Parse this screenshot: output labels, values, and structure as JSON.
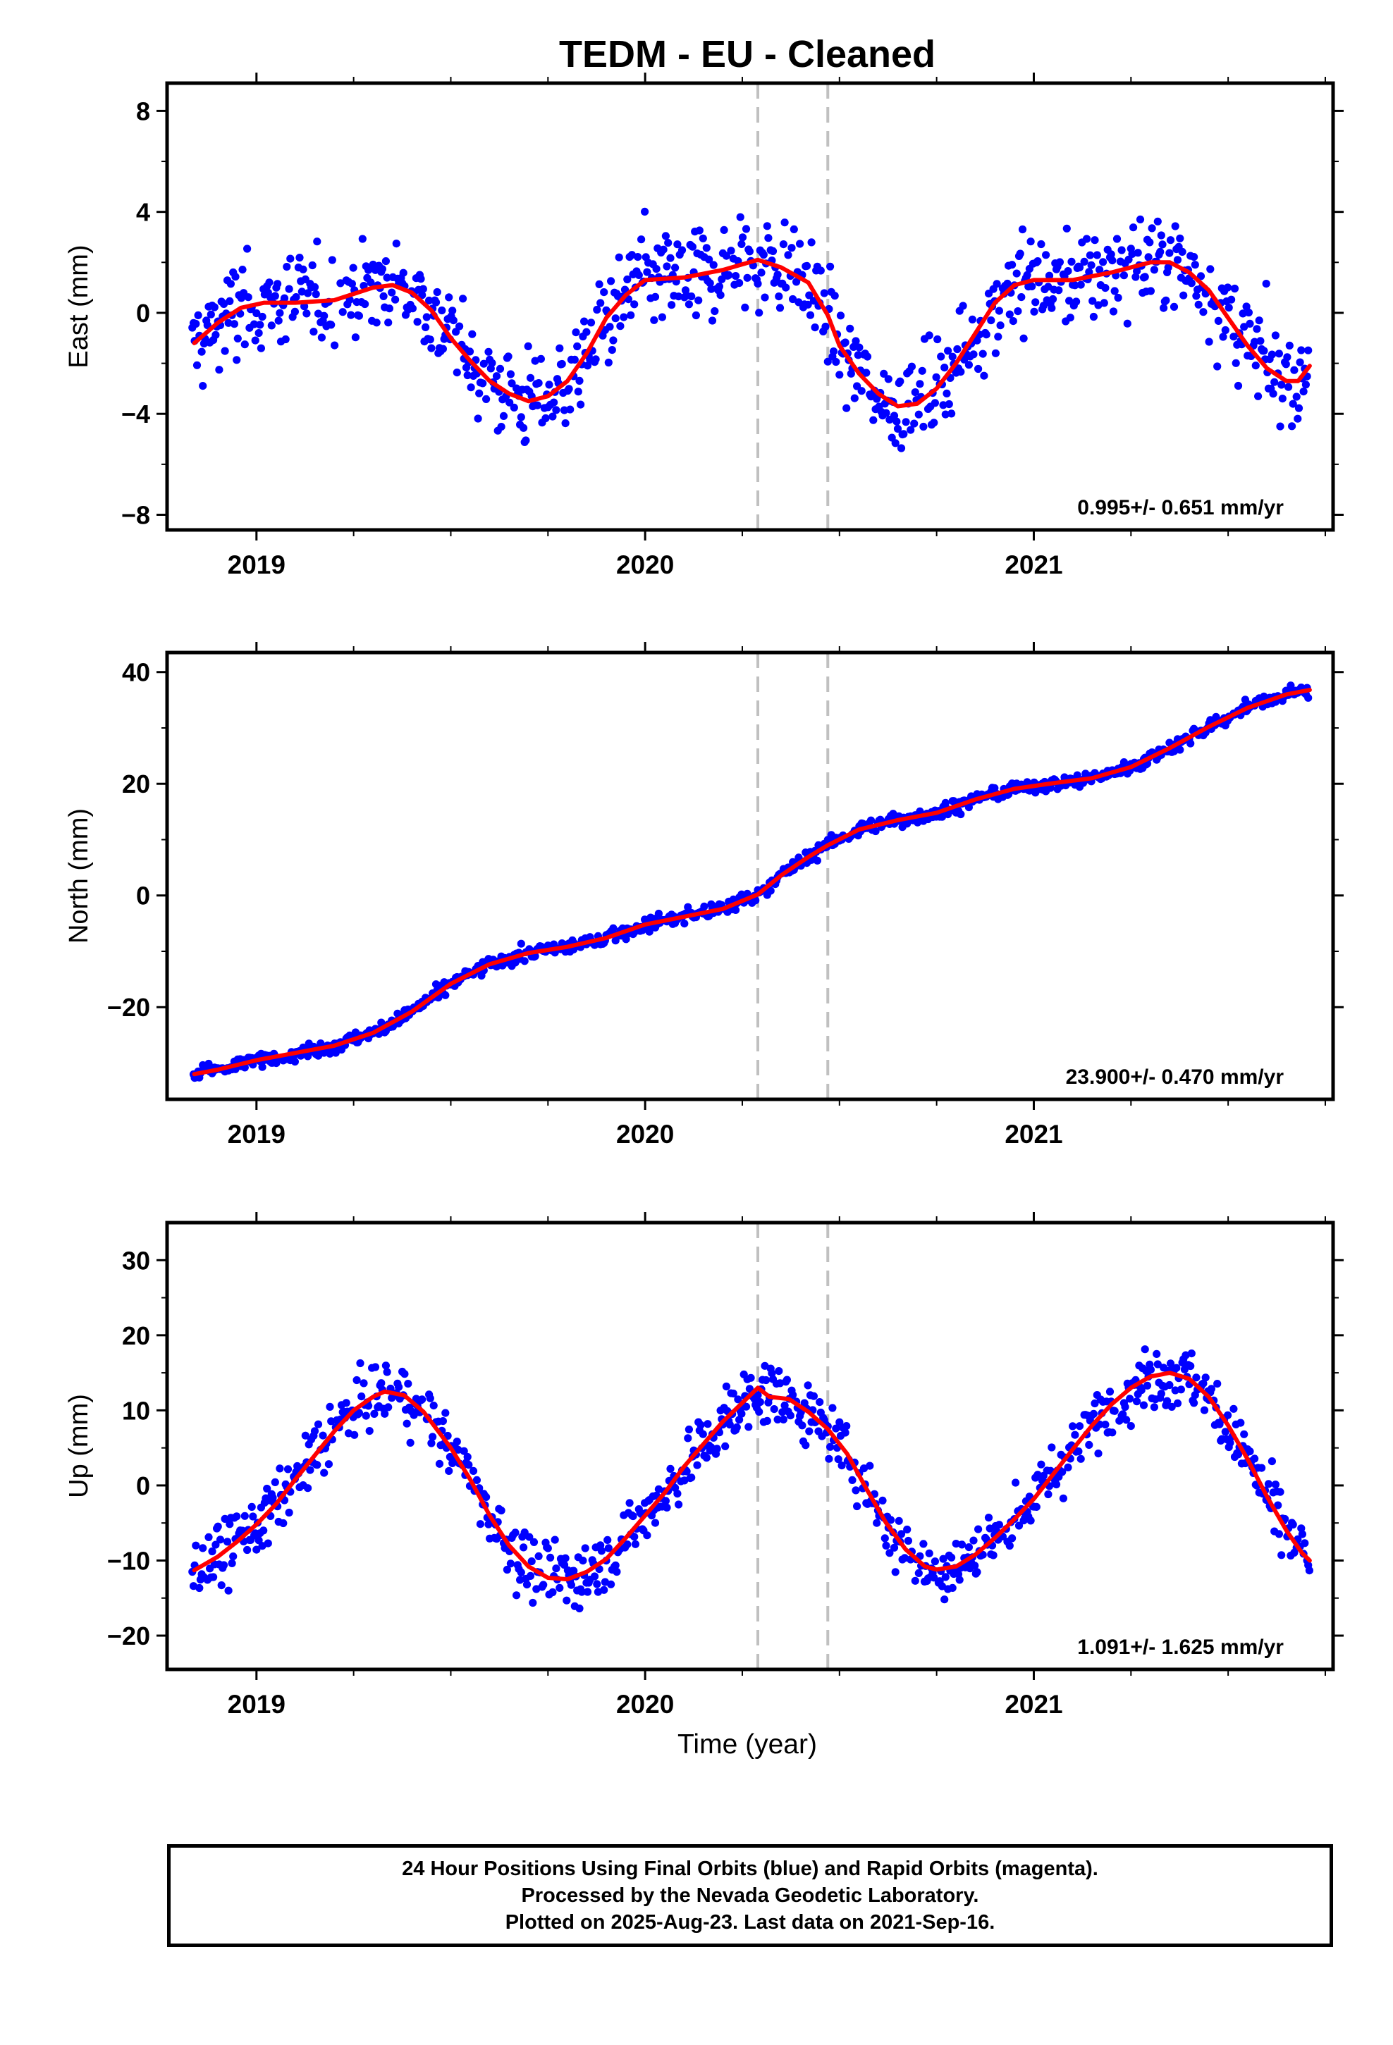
{
  "title": "TEDM  - EU - Cleaned",
  "xlabel": "Time (year)",
  "colors": {
    "points": "#0000ff",
    "fit": "#ff0000",
    "event_lines": "#c0c0c0"
  },
  "footer": {
    "line1": "24 Hour Positions Using Final Orbits (blue) and Rapid Orbits (magenta).",
    "line2": "Processed by the Nevada Geodetic Laboratory.",
    "line3": "Plotted on 2025-Aug-23. Last data on 2021-Sep-16."
  },
  "chart_data": [
    {
      "type": "scatter",
      "component": "east",
      "ylabel": "East (mm)",
      "rate_label": "0.995+/- 0.651 mm/yr",
      "xlim": [
        2018.77,
        2021.77
      ],
      "ylim": [
        -8.6,
        9.1
      ],
      "yticks": [
        -8,
        -4,
        0,
        4,
        8
      ],
      "xticks": [
        2019,
        2020,
        2021
      ],
      "event_lines": [
        2020.29,
        2020.47
      ],
      "fit": [
        [
          2018.84,
          -1.2
        ],
        [
          2018.9,
          -0.4
        ],
        [
          2018.96,
          0.2
        ],
        [
          2019.02,
          0.4
        ],
        [
          2019.1,
          0.4
        ],
        [
          2019.2,
          0.5
        ],
        [
          2019.3,
          1.0
        ],
        [
          2019.35,
          1.1
        ],
        [
          2019.4,
          0.8
        ],
        [
          2019.45,
          0.1
        ],
        [
          2019.5,
          -1.0
        ],
        [
          2019.55,
          -1.9
        ],
        [
          2019.6,
          -2.7
        ],
        [
          2019.65,
          -3.2
        ],
        [
          2019.7,
          -3.5
        ],
        [
          2019.75,
          -3.3
        ],
        [
          2019.8,
          -2.7
        ],
        [
          2019.85,
          -1.6
        ],
        [
          2019.9,
          -0.2
        ],
        [
          2019.95,
          0.7
        ],
        [
          2020.0,
          1.3
        ],
        [
          2020.1,
          1.4
        ],
        [
          2020.2,
          1.7
        ],
        [
          2020.29,
          2.1
        ],
        [
          2020.35,
          1.8
        ],
        [
          2020.42,
          1.2
        ],
        [
          2020.47,
          -0.1
        ],
        [
          2020.5,
          -1.3
        ],
        [
          2020.55,
          -2.4
        ],
        [
          2020.6,
          -3.2
        ],
        [
          2020.65,
          -3.7
        ],
        [
          2020.7,
          -3.6
        ],
        [
          2020.75,
          -3.0
        ],
        [
          2020.8,
          -2.0
        ],
        [
          2020.85,
          -0.8
        ],
        [
          2020.9,
          0.4
        ],
        [
          2020.95,
          1.1
        ],
        [
          2021.0,
          1.3
        ],
        [
          2021.1,
          1.3
        ],
        [
          2021.2,
          1.6
        ],
        [
          2021.3,
          2.0
        ],
        [
          2021.35,
          2.0
        ],
        [
          2021.4,
          1.6
        ],
        [
          2021.45,
          0.9
        ],
        [
          2021.5,
          -0.2
        ],
        [
          2021.55,
          -1.3
        ],
        [
          2021.6,
          -2.2
        ],
        [
          2021.65,
          -2.7
        ],
        [
          2021.68,
          -2.7
        ],
        [
          2021.71,
          -2.1
        ]
      ]
    },
    {
      "type": "scatter",
      "component": "north",
      "ylabel": "North (mm)",
      "rate_label": "23.900+/- 0.470 mm/yr",
      "xlim": [
        2018.77,
        2021.77
      ],
      "ylim": [
        -36.5,
        43.5
      ],
      "yticks": [
        -20,
        0,
        20,
        40
      ],
      "xticks": [
        2019,
        2020,
        2021
      ],
      "event_lines": [
        2020.29,
        2020.47
      ],
      "fit": [
        [
          2018.84,
          -32.0
        ],
        [
          2018.9,
          -31.2
        ],
        [
          2019.0,
          -29.5
        ],
        [
          2019.1,
          -28.2
        ],
        [
          2019.2,
          -26.9
        ],
        [
          2019.3,
          -24.6
        ],
        [
          2019.4,
          -20.8
        ],
        [
          2019.5,
          -15.8
        ],
        [
          2019.6,
          -12.3
        ],
        [
          2019.7,
          -10.3
        ],
        [
          2019.8,
          -9.2
        ],
        [
          2019.9,
          -7.6
        ],
        [
          2020.0,
          -5.2
        ],
        [
          2020.1,
          -3.8
        ],
        [
          2020.2,
          -2.4
        ],
        [
          2020.29,
          0.2
        ],
        [
          2020.35,
          3.6
        ],
        [
          2020.42,
          6.9
        ],
        [
          2020.47,
          9.0
        ],
        [
          2020.55,
          11.8
        ],
        [
          2020.65,
          13.5
        ],
        [
          2020.75,
          14.8
        ],
        [
          2020.85,
          17.2
        ],
        [
          2020.95,
          19.1
        ],
        [
          2021.05,
          20.1
        ],
        [
          2021.15,
          21.0
        ],
        [
          2021.25,
          23.0
        ],
        [
          2021.35,
          26.4
        ],
        [
          2021.45,
          30.2
        ],
        [
          2021.55,
          33.6
        ],
        [
          2021.65,
          36.0
        ],
        [
          2021.71,
          36.8
        ]
      ]
    },
    {
      "type": "scatter",
      "component": "up",
      "ylabel": "Up (mm)",
      "rate_label": "1.091+/- 1.625 mm/yr",
      "xlim": [
        2018.77,
        2021.77
      ],
      "ylim": [
        -24.5,
        35.0
      ],
      "yticks": [
        -20,
        -10,
        0,
        10,
        20,
        30
      ],
      "xticks": [
        2019,
        2020,
        2021
      ],
      "event_lines": [
        2020.29,
        2020.47
      ],
      "fit": [
        [
          2018.84,
          -11.3
        ],
        [
          2018.9,
          -9.5
        ],
        [
          2018.95,
          -7.5
        ],
        [
          2019.0,
          -5.2
        ],
        [
          2019.05,
          -2.5
        ],
        [
          2019.1,
          0.8
        ],
        [
          2019.15,
          4.0
        ],
        [
          2019.2,
          7.2
        ],
        [
          2019.25,
          10.0
        ],
        [
          2019.3,
          11.8
        ],
        [
          2019.33,
          12.5
        ],
        [
          2019.38,
          12.0
        ],
        [
          2019.43,
          9.8
        ],
        [
          2019.5,
          5.0
        ],
        [
          2019.55,
          0.8
        ],
        [
          2019.6,
          -4.0
        ],
        [
          2019.65,
          -8.0
        ],
        [
          2019.7,
          -10.8
        ],
        [
          2019.75,
          -12.3
        ],
        [
          2019.8,
          -12.5
        ],
        [
          2019.85,
          -11.5
        ],
        [
          2019.9,
          -9.8
        ],
        [
          2019.95,
          -7.0
        ],
        [
          2020.0,
          -4.0
        ],
        [
          2020.05,
          -1.0
        ],
        [
          2020.1,
          2.5
        ],
        [
          2020.15,
          5.5
        ],
        [
          2020.2,
          8.5
        ],
        [
          2020.25,
          11.0
        ],
        [
          2020.29,
          13.0
        ],
        [
          2020.32,
          11.8
        ],
        [
          2020.37,
          11.5
        ],
        [
          2020.42,
          9.8
        ],
        [
          2020.47,
          7.5
        ],
        [
          2020.52,
          4.2
        ],
        [
          2020.57,
          -0.5
        ],
        [
          2020.62,
          -5.0
        ],
        [
          2020.67,
          -8.5
        ],
        [
          2020.72,
          -10.8
        ],
        [
          2020.75,
          -11.2
        ],
        [
          2020.8,
          -10.8
        ],
        [
          2020.85,
          -9.2
        ],
        [
          2020.9,
          -7.0
        ],
        [
          2020.95,
          -4.5
        ],
        [
          2021.0,
          -1.8
        ],
        [
          2021.05,
          1.5
        ],
        [
          2021.1,
          4.8
        ],
        [
          2021.15,
          8.0
        ],
        [
          2021.2,
          10.8
        ],
        [
          2021.25,
          13.0
        ],
        [
          2021.3,
          14.5
        ],
        [
          2021.35,
          15.0
        ],
        [
          2021.4,
          14.2
        ],
        [
          2021.45,
          11.8
        ],
        [
          2021.5,
          8.0
        ],
        [
          2021.55,
          3.5
        ],
        [
          2021.6,
          -1.5
        ],
        [
          2021.65,
          -6.0
        ],
        [
          2021.69,
          -9.0
        ],
        [
          2021.71,
          -10.0
        ]
      ]
    }
  ]
}
